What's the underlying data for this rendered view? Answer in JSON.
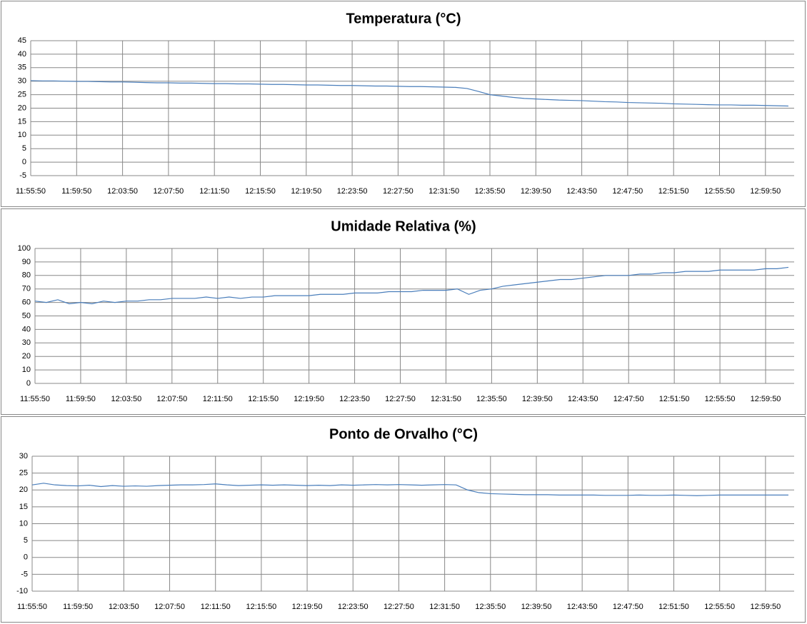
{
  "chart_data": [
    {
      "type": "line",
      "title": "Temperatura (°C)",
      "categories": [
        "11:55:50",
        null,
        null,
        null,
        "11:59:50",
        null,
        null,
        null,
        "12:03:50",
        null,
        null,
        null,
        "12:07:50",
        null,
        null,
        null,
        "12:11:50",
        null,
        null,
        null,
        "12:15:50",
        null,
        null,
        null,
        "12:19:50",
        null,
        null,
        null,
        "12:23:50",
        null,
        null,
        null,
        "12:27:50",
        null,
        null,
        null,
        "12:31:50",
        null,
        null,
        null,
        "12:35:50",
        null,
        null,
        null,
        "12:39:50",
        null,
        null,
        null,
        "12:43:50",
        null,
        null,
        null,
        "12:47:50",
        null,
        null,
        null,
        "12:51:50",
        null,
        null,
        null,
        "12:55:50",
        null,
        null,
        null,
        "12:59:50",
        null,
        null
      ],
      "series": [
        {
          "color": "#4a7ebb",
          "values": [
            30.2,
            30.1,
            30.1,
            30.0,
            29.9,
            29.9,
            29.8,
            29.7,
            29.7,
            29.6,
            29.5,
            29.4,
            29.4,
            29.3,
            29.3,
            29.2,
            29.1,
            29.1,
            29.0,
            29.0,
            28.9,
            28.8,
            28.8,
            28.7,
            28.6,
            28.6,
            28.5,
            28.4,
            28.4,
            28.3,
            28.2,
            28.2,
            28.1,
            28.0,
            28.0,
            27.9,
            27.8,
            27.7,
            27.3,
            26.2,
            25.0,
            24.5,
            24.0,
            23.6,
            23.4,
            23.2,
            23.0,
            22.9,
            22.8,
            22.6,
            22.4,
            22.3,
            22.1,
            22.0,
            21.9,
            21.8,
            21.6,
            21.5,
            21.4,
            21.3,
            21.2,
            21.2,
            21.1,
            21.1,
            21.0,
            20.9,
            20.8
          ]
        }
      ],
      "ylim": [
        -5,
        45
      ],
      "yticks": [
        -5,
        0,
        5,
        10,
        15,
        20,
        25,
        30,
        35,
        40,
        45
      ],
      "grid": true
    },
    {
      "type": "line",
      "title": "Umidade Relativa (%)",
      "categories": [
        "11:55:50",
        null,
        null,
        null,
        "11:59:50",
        null,
        null,
        null,
        "12:03:50",
        null,
        null,
        null,
        "12:07:50",
        null,
        null,
        null,
        "12:11:50",
        null,
        null,
        null,
        "12:15:50",
        null,
        null,
        null,
        "12:19:50",
        null,
        null,
        null,
        "12:23:50",
        null,
        null,
        null,
        "12:27:50",
        null,
        null,
        null,
        "12:31:50",
        null,
        null,
        null,
        "12:35:50",
        null,
        null,
        null,
        "12:39:50",
        null,
        null,
        null,
        "12:43:50",
        null,
        null,
        null,
        "12:47:50",
        null,
        null,
        null,
        "12:51:50",
        null,
        null,
        null,
        "12:55:50",
        null,
        null,
        null,
        "12:59:50",
        null,
        null
      ],
      "series": [
        {
          "color": "#4a7ebb",
          "values": [
            61,
            60,
            62,
            59,
            60,
            59,
            61,
            60,
            61,
            61,
            62,
            62,
            63,
            63,
            63,
            64,
            63,
            64,
            63,
            64,
            64,
            65,
            65,
            65,
            65,
            66,
            66,
            66,
            67,
            67,
            67,
            68,
            68,
            68,
            69,
            69,
            69,
            70,
            66,
            69,
            70,
            72,
            73,
            74,
            75,
            76,
            77,
            77,
            78,
            79,
            80,
            80,
            80,
            81,
            81,
            82,
            82,
            83,
            83,
            83,
            84,
            84,
            84,
            84,
            85,
            85,
            86
          ]
        }
      ],
      "ylim": [
        0,
        100
      ],
      "yticks": [
        0,
        10,
        20,
        30,
        40,
        50,
        60,
        70,
        80,
        90,
        100
      ],
      "grid": true
    },
    {
      "type": "line",
      "title": "Ponto de Orvalho (°C)",
      "categories": [
        "11:55:50",
        null,
        null,
        null,
        "11:59:50",
        null,
        null,
        null,
        "12:03:50",
        null,
        null,
        null,
        "12:07:50",
        null,
        null,
        null,
        "12:11:50",
        null,
        null,
        null,
        "12:15:50",
        null,
        null,
        null,
        "12:19:50",
        null,
        null,
        null,
        "12:23:50",
        null,
        null,
        null,
        "12:27:50",
        null,
        null,
        null,
        "12:31:50",
        null,
        null,
        null,
        "12:35:50",
        null,
        null,
        null,
        "12:39:50",
        null,
        null,
        null,
        "12:43:50",
        null,
        null,
        null,
        "12:47:50",
        null,
        null,
        null,
        "12:51:50",
        null,
        null,
        null,
        "12:55:50",
        null,
        null,
        null,
        "12:59:50",
        null,
        null
      ],
      "series": [
        {
          "color": "#4a7ebb",
          "values": [
            21.5,
            22.0,
            21.5,
            21.3,
            21.2,
            21.4,
            21.0,
            21.3,
            21.1,
            21.2,
            21.1,
            21.3,
            21.4,
            21.5,
            21.5,
            21.6,
            21.8,
            21.5,
            21.3,
            21.4,
            21.5,
            21.4,
            21.5,
            21.4,
            21.3,
            21.4,
            21.3,
            21.5,
            21.4,
            21.5,
            21.6,
            21.5,
            21.6,
            21.5,
            21.4,
            21.5,
            21.6,
            21.5,
            20.0,
            19.2,
            18.9,
            18.8,
            18.7,
            18.6,
            18.6,
            18.6,
            18.5,
            18.5,
            18.5,
            18.5,
            18.4,
            18.4,
            18.4,
            18.5,
            18.4,
            18.4,
            18.5,
            18.4,
            18.3,
            18.4,
            18.5,
            18.5,
            18.5,
            18.5,
            18.5,
            18.5,
            18.5
          ]
        }
      ],
      "ylim": [
        -10,
        30
      ],
      "yticks": [
        -10,
        -5,
        0,
        5,
        10,
        15,
        20,
        25,
        30
      ],
      "grid": true
    }
  ]
}
